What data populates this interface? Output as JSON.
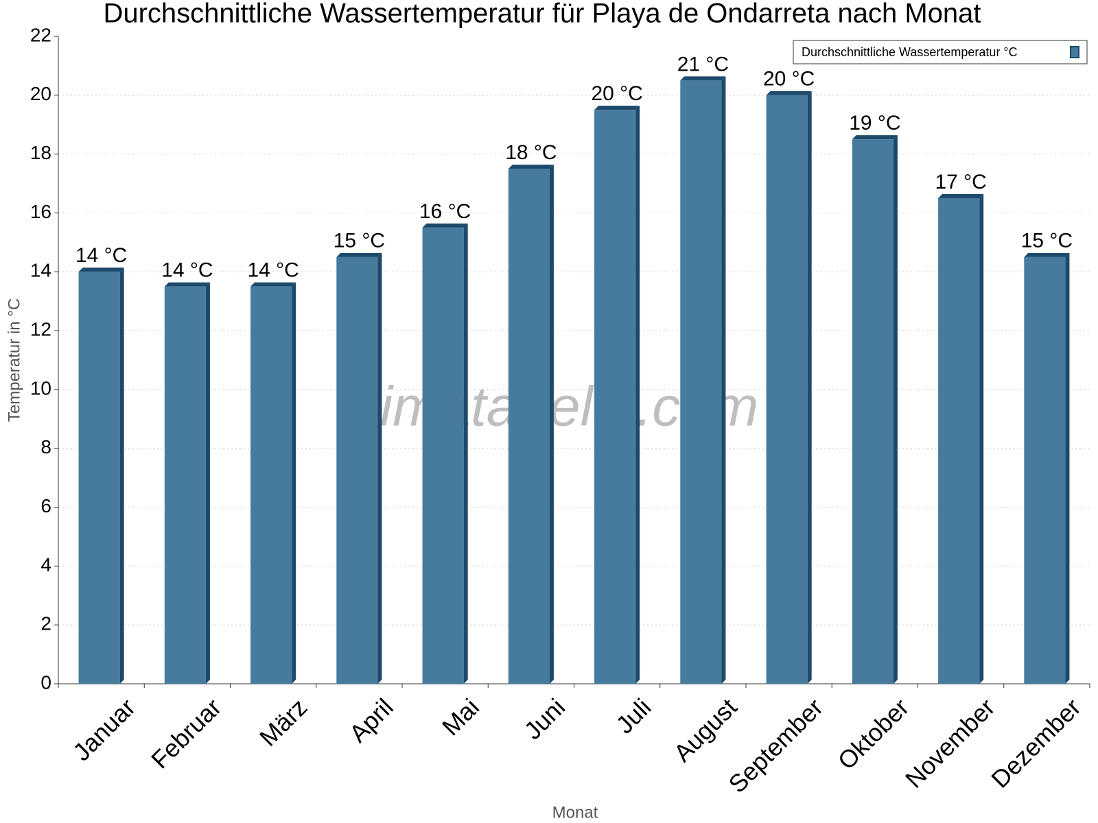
{
  "chart_data": {
    "type": "bar",
    "title": "Durchschnittliche Wassertemperatur für Playa de Ondarreta nach Monat",
    "x_label": "Monat",
    "y_label": "Temperatur in °C",
    "watermark": "klimatabelle.com",
    "categories": [
      "Januar",
      "Februar",
      "März",
      "April",
      "Mai",
      "Juni",
      "Juli",
      "August",
      "September",
      "Oktober",
      "November",
      "Dezember"
    ],
    "series": [
      {
        "name": "Durchschnittliche Wassertemperatur °C",
        "color": "#467b9e",
        "values": [
          14,
          13.5,
          13.5,
          14.5,
          15.5,
          17.5,
          19.5,
          20.5,
          20,
          18.5,
          16.5,
          14.5
        ],
        "value_labels": [
          "14 °C",
          "14 °C",
          "14 °C",
          "15 °C",
          "16 °C",
          "18 °C",
          "20 °C",
          "21 °C",
          "20 °C",
          "19 °C",
          "17 °C",
          "15 °C"
        ]
      }
    ],
    "ylim": [
      0,
      22
    ],
    "yticks": [
      0,
      2,
      4,
      6,
      8,
      10,
      12,
      14,
      16,
      18,
      20,
      22
    ],
    "grid": true,
    "legend": "top-right"
  }
}
